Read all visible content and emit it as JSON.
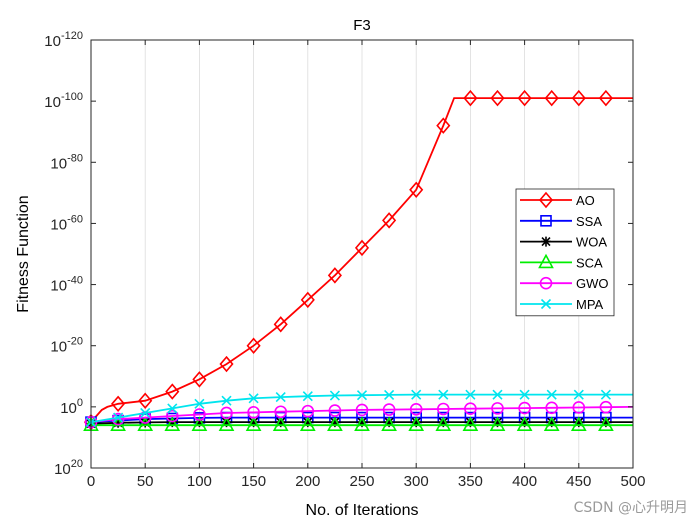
{
  "chart_data": {
    "type": "line",
    "title": "F3",
    "xlabel": "No. of Iterations",
    "ylabel": "Fitness Function",
    "xlim": [
      0,
      500
    ],
    "ylim_log10": [
      -120,
      20
    ],
    "yscale": "log",
    "grid": true,
    "x_ticks": [
      0,
      50,
      100,
      150,
      200,
      250,
      300,
      350,
      400,
      450,
      500
    ],
    "x_tick_labels": [
      "0",
      "50",
      "100",
      "150",
      "200",
      "250",
      "300",
      "350",
      "400",
      "450",
      "500"
    ],
    "y_ticks_log10": [
      20,
      0,
      -20,
      -40,
      -60,
      -80,
      -100,
      -120
    ],
    "y_tick_labels": [
      {
        "base": "10",
        "exp": "20"
      },
      {
        "base": "10",
        "exp": "0"
      },
      {
        "base": "10",
        "exp": "-20"
      },
      {
        "base": "10",
        "exp": "-40"
      },
      {
        "base": "10",
        "exp": "-60"
      },
      {
        "base": "10",
        "exp": "-80"
      },
      {
        "base": "10",
        "exp": "-100"
      },
      {
        "base": "10",
        "exp": "-120"
      }
    ],
    "legend_position": "right-middle",
    "series": [
      {
        "name": "AO",
        "color": "#ff0000",
        "marker": "diamond",
        "x": [
          0,
          5,
          10,
          15,
          25,
          50,
          75,
          100,
          125,
          150,
          175,
          200,
          225,
          250,
          275,
          300,
          325,
          335,
          350,
          375,
          400,
          425,
          450,
          475,
          500
        ],
        "log10_values": [
          5,
          3,
          1,
          0,
          -1,
          -2,
          -5,
          -9,
          -14,
          -20,
          -27,
          -35,
          -43,
          -52,
          -61,
          -71,
          -92,
          -101,
          -101,
          -101,
          -101,
          -101,
          -101,
          -101,
          -101
        ]
      },
      {
        "name": "SSA",
        "color": "#0000ff",
        "marker": "square",
        "x": [
          0,
          25,
          50,
          75,
          100,
          125,
          150,
          175,
          200,
          225,
          250,
          275,
          300,
          325,
          350,
          375,
          400,
          425,
          450,
          475,
          500
        ],
        "log10_values": [
          5,
          4.5,
          4,
          3.8,
          3.6,
          3.5,
          3.5,
          3.5,
          3.5,
          3.5,
          3.5,
          3.5,
          3.5,
          3.5,
          3.5,
          3.5,
          3.5,
          3.5,
          3.5,
          3.5,
          3.5
        ]
      },
      {
        "name": "WOA",
        "color": "#000000",
        "marker": "asterisk",
        "x": [
          0,
          25,
          50,
          75,
          100,
          125,
          150,
          175,
          200,
          225,
          250,
          275,
          300,
          325,
          350,
          375,
          400,
          425,
          450,
          475,
          500
        ],
        "log10_values": [
          5.5,
          5.2,
          5.1,
          5,
          5,
          5,
          5,
          5,
          5,
          5,
          5,
          5,
          5,
          5,
          5,
          5,
          5,
          5,
          5,
          5,
          5
        ]
      },
      {
        "name": "SCA",
        "color": "#00ee00",
        "marker": "triangle",
        "x": [
          0,
          25,
          50,
          75,
          100,
          125,
          150,
          175,
          200,
          225,
          250,
          275,
          300,
          325,
          350,
          375,
          400,
          425,
          450,
          475,
          500
        ],
        "log10_values": [
          6,
          6,
          6,
          6,
          6,
          6,
          6,
          6,
          6,
          6,
          6,
          6,
          6,
          6,
          6,
          6,
          6,
          6,
          6,
          6,
          6
        ]
      },
      {
        "name": "GWO",
        "color": "#ff00ff",
        "marker": "circle",
        "x": [
          0,
          25,
          50,
          75,
          100,
          125,
          150,
          175,
          200,
          225,
          250,
          275,
          300,
          325,
          350,
          375,
          400,
          425,
          450,
          475,
          500
        ],
        "log10_values": [
          5,
          4,
          3.5,
          3,
          2.5,
          2,
          1.8,
          1.6,
          1.4,
          1.2,
          1,
          0.9,
          0.8,
          0.7,
          0.6,
          0.5,
          0.4,
          0.3,
          0.2,
          0.1,
          0
        ]
      },
      {
        "name": "MPA",
        "color": "#00e5ee",
        "marker": "x",
        "x": [
          0,
          25,
          50,
          75,
          100,
          125,
          150,
          175,
          200,
          225,
          250,
          275,
          300,
          325,
          350,
          375,
          400,
          425,
          450,
          475,
          500
        ],
        "log10_values": [
          5,
          3.5,
          2,
          0.5,
          -1,
          -2,
          -2.8,
          -3.2,
          -3.5,
          -3.7,
          -3.8,
          -3.9,
          -4,
          -4,
          -4,
          -4,
          -4,
          -4,
          -4,
          -4,
          -4
        ]
      }
    ]
  },
  "watermark": "CSDN @心升明月"
}
